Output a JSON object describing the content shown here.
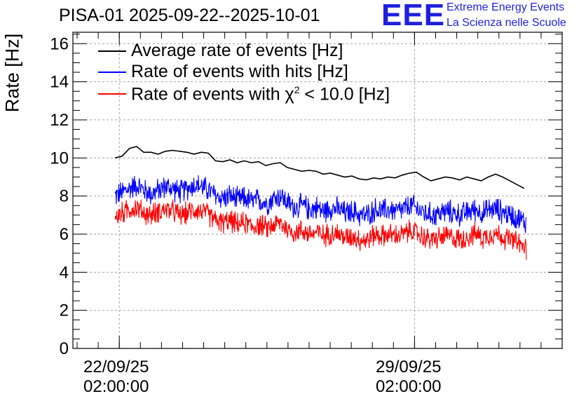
{
  "header": {
    "title": "PISA-01 2025-09-22--2025-10-01",
    "logo_text": "EEE",
    "logo_line1": "Extreme Energy Events",
    "logo_line2": "La Scienza nelle Scuole"
  },
  "chart_data": {
    "type": "line",
    "title": "PISA-01 2025-09-22--2025-10-01",
    "ylabel": "Rate [Hz]",
    "xlabel": "",
    "ylim": [
      0,
      16.6
    ],
    "yticks": [
      "0",
      "2",
      "4",
      "6",
      "8",
      "10",
      "12",
      "14",
      "16"
    ],
    "xticks": [
      {
        "line1": "22/09/25",
        "line2": "02:00:00",
        "day": 0
      },
      {
        "line1": "29/09/25",
        "line2": "02:00:00",
        "day": 7
      }
    ],
    "xlim_days": [
      -1.1,
      10.5
    ],
    "grid": true,
    "legend_position": "top-left",
    "series": [
      {
        "name": "Average rate of events [Hz]",
        "color": "#000000",
        "day_start": -0.1,
        "day_end": 9.6,
        "values": [
          10.0,
          10.1,
          10.5,
          10.6,
          10.3,
          10.3,
          10.2,
          10.35,
          10.4,
          10.35,
          10.3,
          10.2,
          10.3,
          10.25,
          9.85,
          9.8,
          9.9,
          9.75,
          9.85,
          9.75,
          9.8,
          9.6,
          9.7,
          9.75,
          9.5,
          9.4,
          9.3,
          9.35,
          9.3,
          9.15,
          9.2,
          9.1,
          9.0,
          9.05,
          8.9,
          8.85,
          8.95,
          8.9,
          9.0,
          8.95,
          9.1,
          9.2,
          9.25,
          9.0,
          8.8,
          8.9,
          9.0,
          8.95,
          8.85,
          9.0,
          8.9,
          8.8,
          9.0,
          9.15,
          9.0,
          8.8,
          8.6,
          8.4
        ]
      },
      {
        "name": "Rate of events with hits [Hz]",
        "color": "#0000ff",
        "day_start": -0.1,
        "day_end": 9.65,
        "values": [
          8.0,
          8.2,
          8.4,
          8.6,
          8.3,
          8.1,
          8.3,
          8.5,
          8.4,
          8.2,
          8.4,
          8.6,
          8.5,
          8.3,
          8.0,
          7.9,
          8.0,
          7.8,
          7.9,
          7.7,
          7.8,
          7.6,
          7.9,
          8.0,
          7.6,
          7.4,
          7.5,
          7.3,
          7.4,
          7.2,
          7.4,
          7.3,
          7.1,
          7.2,
          7.0,
          7.0,
          7.3,
          7.2,
          7.3,
          7.2,
          7.3,
          7.5,
          7.3,
          7.1,
          7.0,
          7.1,
          7.2,
          7.1,
          7.0,
          7.2,
          7.3,
          7.1,
          7.3,
          7.3,
          7.1,
          7.0,
          6.8,
          6.6
        ],
        "spread": 0.75
      },
      {
        "name": "Rate of events with χ² < 10.0 [Hz]",
        "color": "#ff0000",
        "day_start": -0.1,
        "day_end": 9.65,
        "values": [
          6.9,
          7.1,
          7.3,
          7.4,
          7.1,
          7.0,
          7.2,
          7.3,
          7.2,
          7.0,
          7.1,
          7.3,
          7.2,
          7.0,
          6.7,
          6.6,
          6.7,
          6.5,
          6.6,
          6.4,
          6.5,
          6.3,
          6.5,
          6.6,
          6.2,
          6.1,
          6.2,
          6.0,
          6.1,
          5.9,
          6.1,
          6.0,
          5.8,
          5.9,
          5.7,
          5.7,
          6.0,
          5.9,
          6.0,
          5.9,
          6.0,
          6.2,
          6.0,
          5.8,
          5.7,
          5.8,
          5.9,
          5.8,
          5.7,
          5.9,
          6.0,
          5.8,
          6.0,
          6.0,
          5.8,
          5.7,
          5.5,
          5.2
        ],
        "spread": 0.7
      }
    ]
  },
  "legend": {
    "entry1": "Average rate of events [Hz]",
    "entry2": "Rate of events with hits [Hz]",
    "entry3_prefix": "Rate of events with χ",
    "entry3_sup": "2",
    "entry3_suffix": " < 10.0 [Hz]"
  },
  "axis": {
    "ylabel": "Rate [Hz]",
    "x1_line1": "22/09/25",
    "x1_line2": "02:00:00",
    "x2_line1": "29/09/25",
    "x2_line2": "02:00:00"
  }
}
